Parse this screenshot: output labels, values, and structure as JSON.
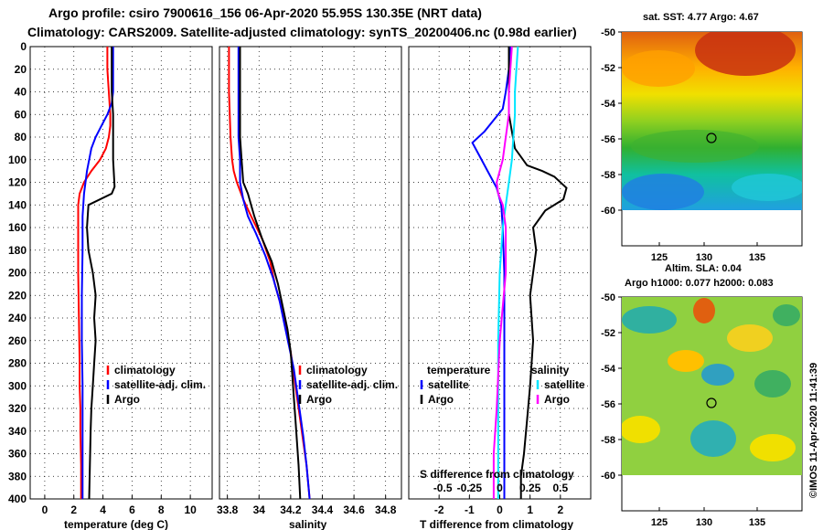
{
  "title": {
    "line1": "Argo profile: csiro 7900616_156 06-Apr-2020 55.95S 130.35E (NRT data)",
    "line2": "Climatology: CARS2009. Satellite-adjusted climatology: synTS_20200406.nc (0.98d earlier)"
  },
  "credit": "©IMOS 11-Apr-2020 11:41:39",
  "colors": {
    "climatology": "#ff0000",
    "satellite": "#0000ff",
    "argo": "#000000",
    "sat_salinity": "#00e5ff",
    "argo_salinity": "#ff00ff"
  },
  "chart_data": [
    {
      "id": "temperature",
      "type": "line",
      "xlabel": "temperature (deg C)",
      "xlim": [
        -1,
        11.5
      ],
      "xticks": [
        "0",
        "2",
        "4",
        "6",
        "8",
        "10"
      ],
      "xtick_values": [
        0,
        2,
        4,
        6,
        8,
        10
      ],
      "ylim": [
        0,
        400
      ],
      "yticks": [
        "0",
        "20",
        "40",
        "60",
        "80",
        "100",
        "120",
        "140",
        "160",
        "180",
        "200",
        "220",
        "240",
        "260",
        "280",
        "300",
        "320",
        "340",
        "360",
        "380",
        "400"
      ],
      "legend": [
        "climatology",
        "satellite-adj. clim.",
        "Argo"
      ],
      "series": [
        {
          "name": "climatology",
          "color": "#ff0000",
          "x": [
            4.3,
            4.3,
            4.4,
            4.5,
            4.5,
            4.4,
            4.2,
            3.8,
            3.2,
            2.7,
            2.4,
            2.3,
            2.3,
            2.3,
            2.35,
            2.4,
            2.4,
            2.45,
            2.45,
            2.5,
            2.5
          ],
          "y": [
            0,
            20,
            40,
            60,
            70,
            80,
            90,
            100,
            110,
            120,
            130,
            140,
            160,
            200,
            240,
            280,
            300,
            320,
            340,
            370,
            400
          ]
        },
        {
          "name": "satellite-adj. clim.",
          "color": "#0000ff",
          "x": [
            4.7,
            4.7,
            4.7,
            4.6,
            4.3,
            3.9,
            3.5,
            3.2,
            2.9,
            2.8,
            2.7,
            2.6,
            2.6,
            2.55,
            2.55,
            2.6,
            2.6,
            2.6,
            2.6,
            2.6,
            2.6
          ],
          "y": [
            0,
            20,
            40,
            50,
            60,
            70,
            80,
            90,
            110,
            120,
            130,
            150,
            180,
            220,
            260,
            300,
            320,
            340,
            360,
            380,
            400
          ]
        },
        {
          "name": "Argo",
          "color": "#000000",
          "x": [
            4.6,
            4.6,
            4.6,
            4.7,
            4.7,
            4.7,
            4.8,
            4.6,
            3.0,
            2.9,
            3.0,
            3.3,
            3.5,
            3.4,
            3.5,
            3.4,
            3.3,
            3.2,
            3.15,
            3.1,
            3.05
          ],
          "y": [
            0,
            20,
            40,
            60,
            80,
            100,
            124,
            130,
            140,
            160,
            180,
            200,
            220,
            240,
            260,
            280,
            300,
            320,
            340,
            370,
            400
          ]
        }
      ]
    },
    {
      "id": "salinity",
      "type": "line",
      "xlabel": "salinity",
      "xlim": [
        33.75,
        34.9
      ],
      "xticks": [
        "33.8",
        "34",
        "34.2",
        "34.4",
        "34.6",
        "34.8"
      ],
      "xtick_values": [
        33.8,
        34.0,
        34.2,
        34.4,
        34.6,
        34.8
      ],
      "ylim": [
        0,
        400
      ],
      "legend": [
        "climatology",
        "satellite-adj. clim.",
        "Argo"
      ],
      "series": [
        {
          "name": "climatology",
          "color": "#ff0000",
          "x": [
            33.81,
            33.81,
            33.82,
            33.83,
            33.84,
            33.86,
            33.9,
            33.95,
            34.02,
            34.07,
            34.1,
            34.14,
            34.17,
            34.2,
            34.22,
            34.24,
            34.26,
            34.28,
            34.3,
            34.32
          ],
          "y": [
            0,
            40,
            80,
            100,
            110,
            120,
            135,
            150,
            170,
            190,
            210,
            230,
            250,
            270,
            290,
            310,
            330,
            350,
            370,
            400
          ]
        },
        {
          "name": "satellite-adj. clim.",
          "color": "#0000ff",
          "x": [
            33.87,
            33.87,
            33.87,
            33.88,
            33.88,
            33.9,
            33.93,
            33.98,
            34.04,
            34.09,
            34.13,
            34.16,
            34.19,
            34.22,
            34.24,
            34.26,
            34.28,
            34.3,
            34.32
          ],
          "y": [
            0,
            40,
            80,
            100,
            120,
            135,
            150,
            165,
            185,
            205,
            225,
            245,
            265,
            285,
            305,
            325,
            345,
            370,
            400
          ]
        },
        {
          "name": "Argo",
          "color": "#000000",
          "x": [
            33.88,
            33.88,
            33.88,
            33.89,
            33.9,
            33.93,
            33.95,
            33.97,
            34.02,
            34.08,
            34.12,
            34.15,
            34.18,
            34.2,
            34.21,
            34.22,
            34.23,
            34.24,
            34.25,
            34.26
          ],
          "y": [
            0,
            40,
            80,
            100,
            120,
            130,
            140,
            150,
            170,
            190,
            210,
            230,
            250,
            270,
            290,
            310,
            330,
            350,
            370,
            400
          ]
        }
      ]
    },
    {
      "id": "difference",
      "type": "line",
      "xlabel": "T difference from climatology",
      "xlabel_top": "S difference from climatology",
      "xlim": [
        -3,
        3.0
      ],
      "xticks": [
        "-2",
        "-1",
        "0",
        "1",
        "2"
      ],
      "xtick_values": [
        -2,
        -1,
        0,
        1,
        2
      ],
      "xticks_top": [
        "-0.5",
        "-0.25",
        "0",
        "0.25",
        "0.5"
      ],
      "xtick_top_values": [
        -2,
        -1,
        0,
        1,
        2
      ],
      "ylim": [
        0,
        400
      ],
      "legend_headers": [
        "temperature",
        "salinity"
      ],
      "legend_left": [
        "satellite",
        "Argo"
      ],
      "legend_right": [
        "satellite",
        "Argo"
      ],
      "series": [
        {
          "name": "satellite temperature",
          "color": "#0000ff",
          "x": [
            0.35,
            0.3,
            0.2,
            0.1,
            -0.2,
            -0.5,
            -0.9,
            -0.7,
            -0.4,
            -0.1,
            0.05,
            0.1,
            0.15,
            0.15,
            0.15,
            0.15,
            0.15,
            0.15,
            0.15
          ],
          "y": [
            0,
            20,
            40,
            55,
            65,
            75,
            85,
            95,
            110,
            125,
            140,
            160,
            200,
            240,
            280,
            320,
            360,
            380,
            400
          ]
        },
        {
          "name": "Argo temperature",
          "color": "#000000",
          "x": [
            0.3,
            0.3,
            0.3,
            0.3,
            0.5,
            0.9,
            1.4,
            1.8,
            2.2,
            2.1,
            1.5,
            1.1,
            1.2,
            1.0,
            1.1,
            1.0,
            0.9,
            0.8,
            0.7,
            0.7
          ],
          "y": [
            0,
            20,
            40,
            60,
            90,
            105,
            110,
            115,
            125,
            135,
            145,
            160,
            180,
            220,
            260,
            300,
            330,
            360,
            380,
            400
          ]
        },
        {
          "name": "satellite salinity",
          "color": "#00e5ff",
          "x": [
            0.6,
            0.55,
            0.5,
            0.5,
            0.45,
            0.4,
            0.3,
            0.2,
            0.1,
            0.0,
            -0.05,
            -0.05,
            -0.05,
            -0.05
          ],
          "y": [
            0,
            20,
            40,
            60,
            80,
            100,
            120,
            140,
            160,
            200,
            260,
            320,
            360,
            400
          ]
        },
        {
          "name": "Argo salinity",
          "color": "#ff00ff",
          "x": [
            0.4,
            0.35,
            0.3,
            0.3,
            0.2,
            0.1,
            -0.1,
            -0.05,
            0.1,
            0.2,
            0.2,
            0.0,
            -0.1,
            -0.2,
            -0.2
          ],
          "y": [
            0,
            20,
            40,
            60,
            80,
            100,
            120,
            130,
            140,
            160,
            200,
            260,
            320,
            360,
            400
          ]
        }
      ]
    }
  ],
  "maps": {
    "sst": {
      "title": "sat. SST: 4.77 Argo: 4.67",
      "lat_ticks": [
        "-50",
        "-52",
        "-54",
        "-56",
        "-58",
        "-60"
      ],
      "lon_ticks": [
        "125",
        "130",
        "135"
      ]
    },
    "sla": {
      "title1": "Altim. SLA: 0.04",
      "title2": "Argo h1000: 0.077 h2000: 0.083",
      "lat_ticks": [
        "-50",
        "-52",
        "-54",
        "-56",
        "-58",
        "-60"
      ],
      "lon_ticks": [
        "125",
        "130",
        "135"
      ]
    }
  }
}
